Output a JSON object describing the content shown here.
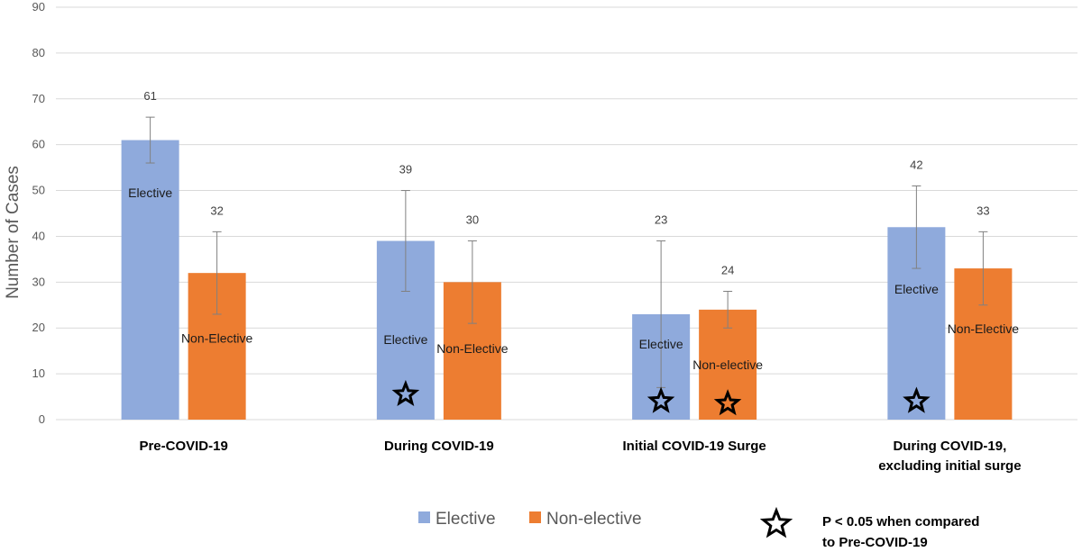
{
  "chart_data": {
    "type": "bar",
    "title": "",
    "xlabel": "",
    "ylabel": "Number of Cases",
    "ylim": [
      0,
      90
    ],
    "yticks": [
      0,
      10,
      20,
      30,
      40,
      50,
      60,
      70,
      80,
      90
    ],
    "categories": [
      [
        "Pre-COVID-19"
      ],
      [
        "During COVID-19"
      ],
      [
        "Initial COVID-19 Surge"
      ],
      [
        "During COVID-19,",
        "excluding initial surge"
      ]
    ],
    "series": [
      {
        "name": "Elective",
        "color": "#8faadc",
        "values": [
          61,
          39,
          23,
          42
        ],
        "error_low": [
          56,
          28,
          7,
          33
        ],
        "error_high": [
          66,
          50,
          39,
          51
        ],
        "bar_labels": [
          "Elective",
          "Elective",
          "Elective",
          "Elective"
        ],
        "label_values": [
          49.5,
          17.5,
          16.5,
          28.5
        ],
        "significant": [
          false,
          true,
          true,
          true
        ],
        "star_values": [
          null,
          5.5,
          4,
          4
        ]
      },
      {
        "name": "Non-elective",
        "color": "#ed7d31",
        "values": [
          32,
          30,
          24,
          33
        ],
        "error_low": [
          23,
          21,
          20,
          25
        ],
        "error_high": [
          41,
          39,
          28,
          41
        ],
        "bar_labels": [
          "Non-Elective",
          "Non-Elective",
          "Non-elective",
          "Non-Elective"
        ],
        "label_values": [
          17.8,
          15.5,
          12,
          19.8
        ],
        "significant": [
          false,
          false,
          true,
          false
        ],
        "star_values": [
          null,
          null,
          3.5,
          null
        ]
      }
    ],
    "legend": {
      "entries": [
        "Elective",
        "Non-elective"
      ],
      "placement": "bottom-center"
    },
    "annotation": {
      "symbol": "star",
      "lines": [
        "P < 0.05 when compared",
        "to Pre-COVID-19"
      ]
    }
  }
}
